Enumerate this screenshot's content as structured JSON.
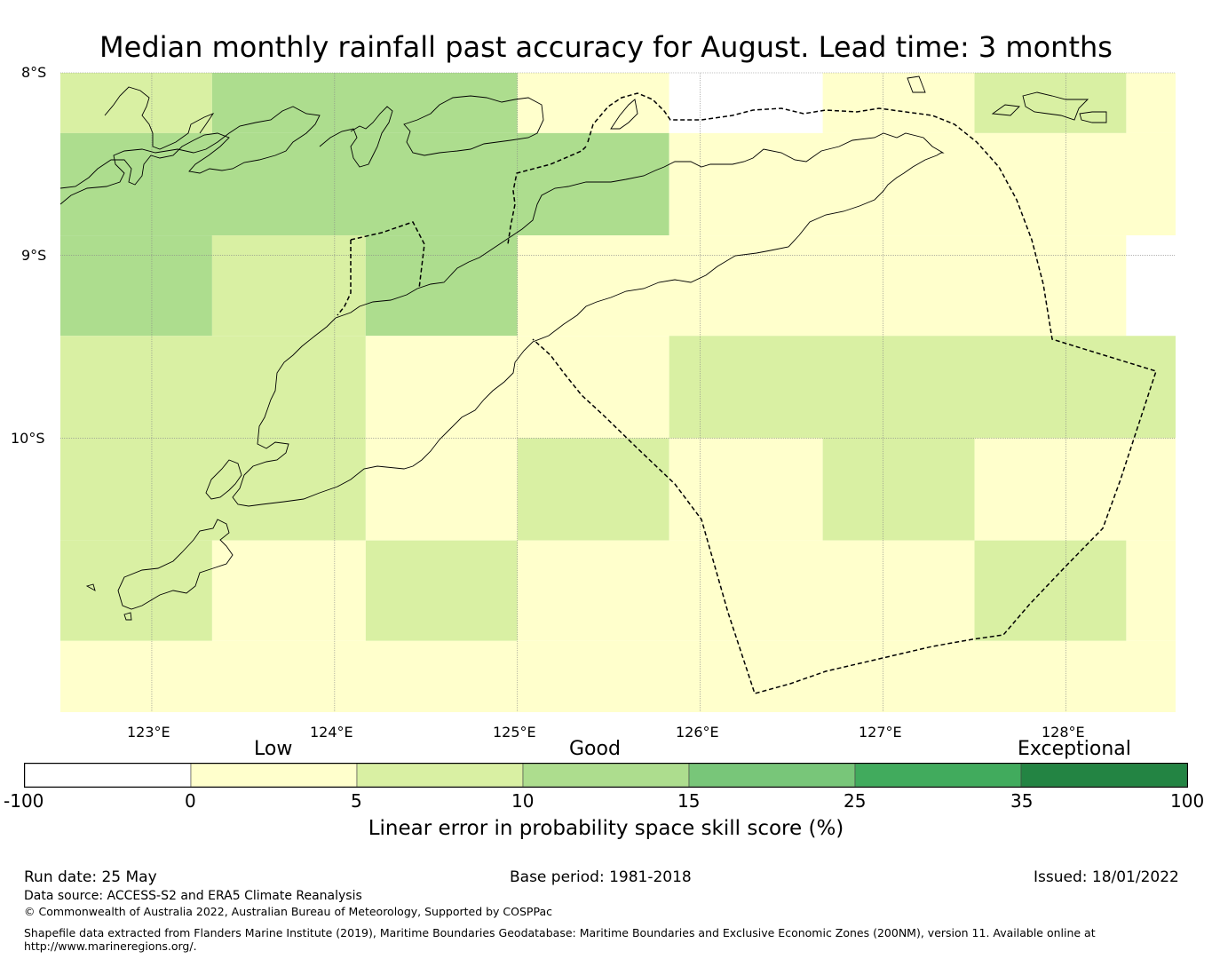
{
  "title": "Median monthly rainfall past accuracy for August. Lead time: 3 months",
  "map": {
    "lat_labels": [
      "8°S",
      "9°S",
      "10°S"
    ],
    "lon_labels": [
      "123°E",
      "124°E",
      "125°E",
      "126°E",
      "127°E",
      "128°E"
    ],
    "lon_range": [
      122.5,
      128.6
    ],
    "lat_range": [
      -8.0,
      -11.5
    ],
    "grid_cells": [
      {
        "lon": [
          122.5,
          123.33
        ],
        "lat": [
          -8.0,
          -8.33
        ],
        "cls": "5-10"
      },
      {
        "lon": [
          123.33,
          125.0
        ],
        "lat": [
          -8.0,
          -8.33
        ],
        "cls": "10-15"
      },
      {
        "lon": [
          125.0,
          125.83
        ],
        "lat": [
          -8.0,
          -8.33
        ],
        "cls": "0-5"
      },
      {
        "lon": [
          125.83,
          126.67
        ],
        "lat": [
          -8.0,
          -8.33
        ],
        "cls": "-100-0"
      },
      {
        "lon": [
          126.67,
          127.5
        ],
        "lat": [
          -8.0,
          -8.33
        ],
        "cls": "0-5"
      },
      {
        "lon": [
          127.5,
          128.33
        ],
        "lat": [
          -8.0,
          -8.33
        ],
        "cls": "5-10"
      },
      {
        "lon": [
          128.33,
          128.6
        ],
        "lat": [
          -8.0,
          -8.33
        ],
        "cls": "0-5"
      },
      {
        "lon": [
          122.5,
          125.83
        ],
        "lat": [
          -8.33,
          -8.89
        ],
        "cls": "10-15"
      },
      {
        "lon": [
          125.83,
          128.6
        ],
        "lat": [
          -8.33,
          -8.89
        ],
        "cls": "0-5"
      },
      {
        "lon": [
          122.5,
          123.33
        ],
        "lat": [
          -8.89,
          -9.44
        ],
        "cls": "10-15"
      },
      {
        "lon": [
          123.33,
          124.17
        ],
        "lat": [
          -8.89,
          -9.44
        ],
        "cls": "5-10"
      },
      {
        "lon": [
          124.17,
          125.0
        ],
        "lat": [
          -8.89,
          -9.44
        ],
        "cls": "10-15"
      },
      {
        "lon": [
          125.0,
          128.33
        ],
        "lat": [
          -8.89,
          -9.44
        ],
        "cls": "0-5"
      },
      {
        "lon": [
          128.33,
          128.6
        ],
        "lat": [
          -8.89,
          -9.44
        ],
        "cls": "-100-0"
      },
      {
        "lon": [
          122.5,
          124.17
        ],
        "lat": [
          -9.44,
          -10.0
        ],
        "cls": "5-10"
      },
      {
        "lon": [
          124.17,
          125.83
        ],
        "lat": [
          -9.44,
          -10.0
        ],
        "cls": "0-5"
      },
      {
        "lon": [
          125.83,
          128.6
        ],
        "lat": [
          -9.44,
          -10.0
        ],
        "cls": "5-10"
      },
      {
        "lon": [
          122.5,
          124.17
        ],
        "lat": [
          -10.0,
          -10.56
        ],
        "cls": "5-10"
      },
      {
        "lon": [
          124.17,
          125.0
        ],
        "lat": [
          -10.0,
          -10.56
        ],
        "cls": "0-5"
      },
      {
        "lon": [
          125.0,
          125.83
        ],
        "lat": [
          -10.0,
          -10.56
        ],
        "cls": "5-10"
      },
      {
        "lon": [
          125.83,
          126.67
        ],
        "lat": [
          -10.0,
          -10.56
        ],
        "cls": "0-5"
      },
      {
        "lon": [
          126.67,
          127.5
        ],
        "lat": [
          -10.0,
          -10.56
        ],
        "cls": "5-10"
      },
      {
        "lon": [
          127.5,
          128.6
        ],
        "lat": [
          -10.0,
          -10.56
        ],
        "cls": "0-5"
      },
      {
        "lon": [
          122.5,
          123.33
        ],
        "lat": [
          -10.56,
          -11.11
        ],
        "cls": "5-10"
      },
      {
        "lon": [
          123.33,
          124.17
        ],
        "lat": [
          -10.56,
          -11.11
        ],
        "cls": "0-5"
      },
      {
        "lon": [
          124.17,
          125.0
        ],
        "lat": [
          -10.56,
          -11.11
        ],
        "cls": "5-10"
      },
      {
        "lon": [
          125.0,
          127.5
        ],
        "lat": [
          -10.56,
          -11.11
        ],
        "cls": "0-5"
      },
      {
        "lon": [
          127.5,
          128.33
        ],
        "lat": [
          -10.56,
          -11.11
        ],
        "cls": "5-10"
      },
      {
        "lon": [
          128.33,
          128.6
        ],
        "lat": [
          -10.56,
          -11.11
        ],
        "cls": "0-5"
      },
      {
        "lon": [
          122.5,
          128.6
        ],
        "lat": [
          -11.11,
          -11.5
        ],
        "cls": "0-5"
      }
    ]
  },
  "colorbar": {
    "categories": [
      "Low",
      "Good",
      "Exceptional"
    ],
    "ticks": [
      "-100",
      "0",
      "5",
      "10",
      "15",
      "25",
      "35",
      "100"
    ],
    "colors": [
      "#ffffff",
      "#ffffcc",
      "#d9f0a3",
      "#addd8e",
      "#78c679",
      "#41ab5d",
      "#238443"
    ],
    "label": "Linear error in probability space skill score (%)"
  },
  "footer": {
    "run_date": "Run date: 25 May",
    "base_period": "Base period: 1981-2018",
    "issued": "Issued: 18/01/2022",
    "data_source": "Data source: ACCESS-S2 and ERA5 Climate Reanalysis",
    "copyright": "© Commonwealth of Australia 2022, Australian Bureau of Meteorology, Supported by COSPPac",
    "shapefile_line1": "Shapefile data extracted from Flanders Marine Institute (2019), Maritime Boundaries Geodatabase: Maritime Boundaries and Exclusive Economic Zones (200NM), version 11. Available online at",
    "shapefile_line2": "http://www.marineregions.org/."
  }
}
